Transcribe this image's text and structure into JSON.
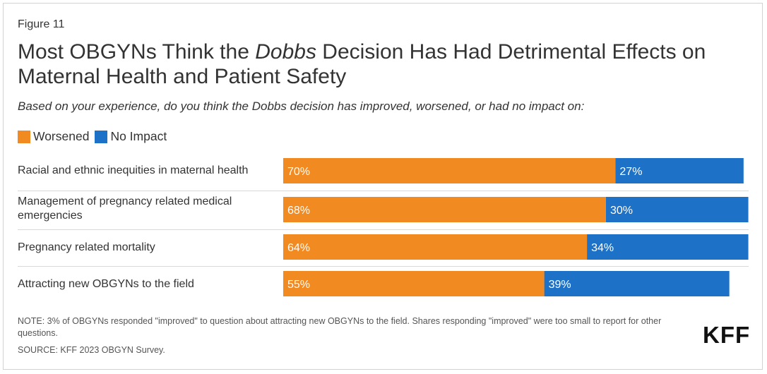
{
  "figure_label": "Figure 11",
  "title_before": "Most OBGYNs Think the ",
  "title_italic": "Dobbs",
  "title_after": " Decision Has Had Detrimental Effects on Maternal Health and Patient Safety",
  "subtitle": "Based on your experience, do you think the Dobbs decision has improved, worsened, or had no impact on:",
  "note": "NOTE: 3% of OBGYNs responded \"improved\" to question about attracting new OBGYNs to the field. Shares responding \"improved\" were too small to report for other questions.",
  "source": "SOURCE: KFF 2023 OBGYN Survey.",
  "logo_text": "KFF",
  "colors": {
    "worsened": "#f28a22",
    "no_impact": "#1d72c7"
  },
  "chart_data": {
    "type": "bar",
    "orientation": "horizontal",
    "stacked": true,
    "categories": [
      "Racial and ethnic inequities in maternal health",
      "Management of pregnancy related medical emergencies",
      "Pregnancy related mortality",
      "Attracting new OBGYNs to the field"
    ],
    "series": [
      {
        "name": "Worsened",
        "values": [
          70,
          68,
          64,
          55
        ],
        "labels": [
          "70%",
          "68%",
          "64%",
          "55%"
        ]
      },
      {
        "name": "No Impact",
        "values": [
          27,
          30,
          34,
          39
        ],
        "labels": [
          "27%",
          "30%",
          "34%",
          "39%"
        ]
      }
    ],
    "xlim": [
      0,
      100
    ],
    "legend_position": "top-left",
    "grid": false
  }
}
